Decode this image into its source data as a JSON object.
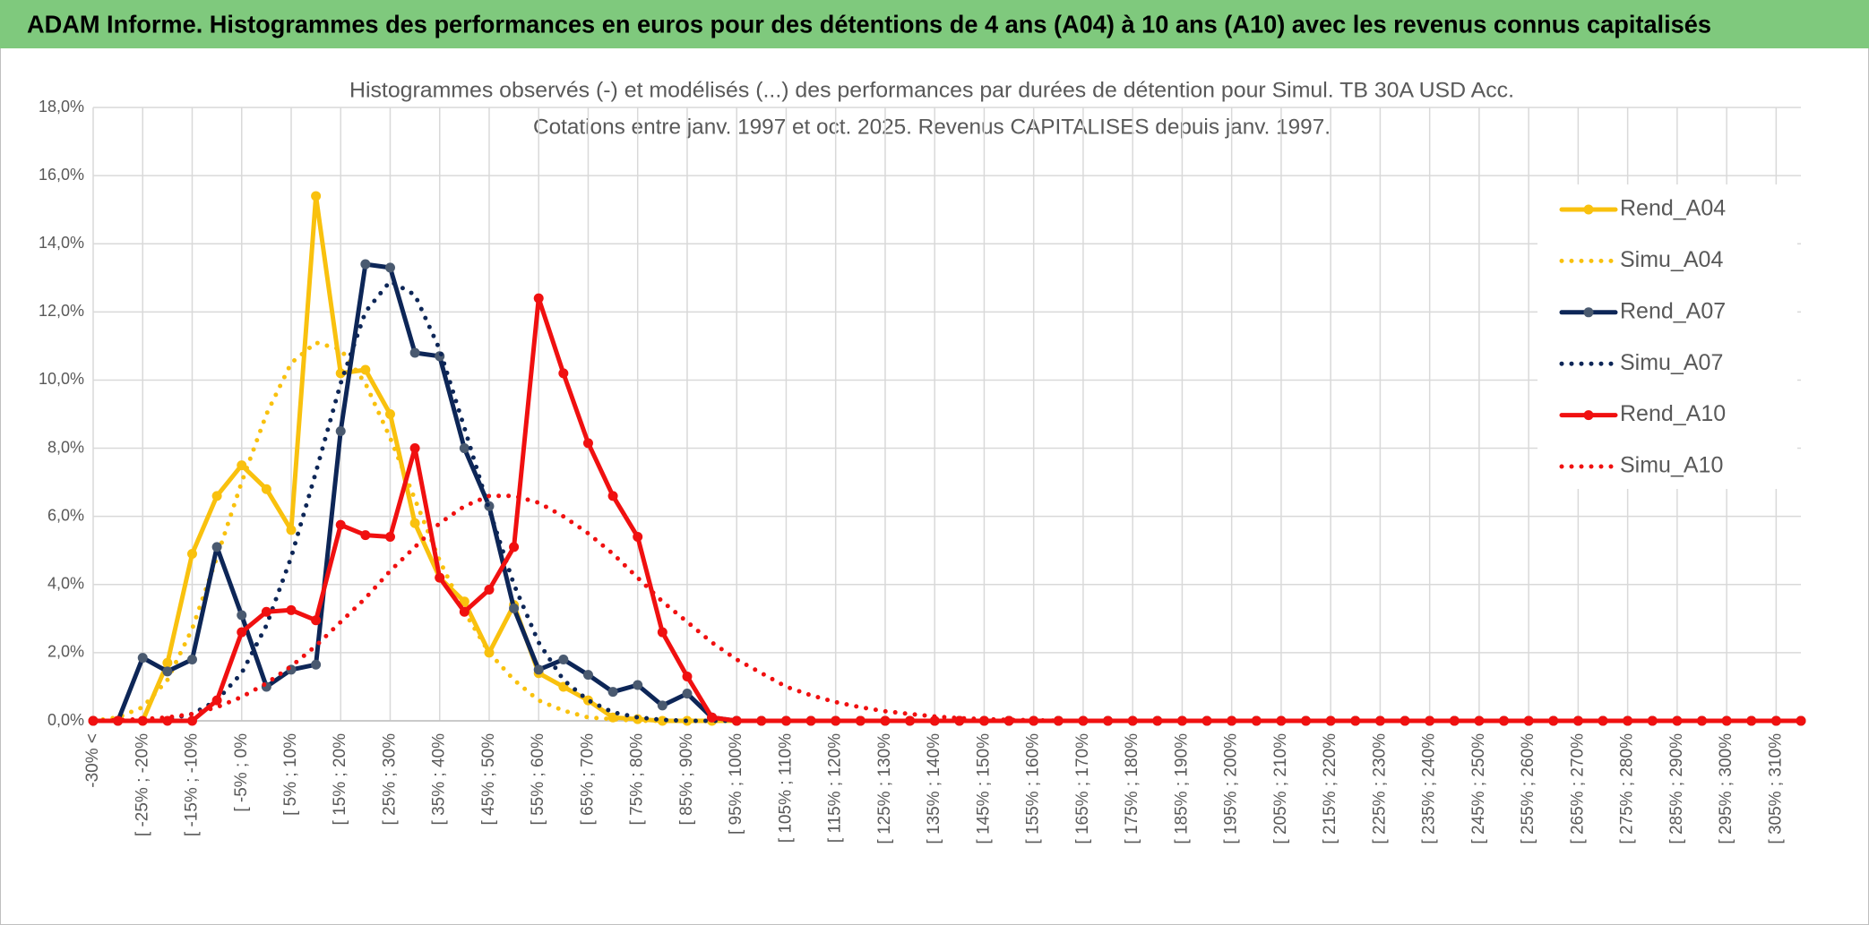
{
  "header": {
    "title": "ADAM Informe. Histogrammes des performances en euros pour des détentions de 4 ans (A04) à 10 ans (A10) avec les revenus connus capitalisés"
  },
  "chart_data": {
    "type": "line",
    "title": "Histogrammes observés (-) et modélisés (...) des performances par durées de détention pour Simul. TB 30A USD Acc.",
    "subtitle": "Cotations entre janv. 1997 et oct. 2025. Revenus CAPITALISES depuis janv. 1997.",
    "categories": [
      "-30% <",
      null,
      "[ -25% ; -20%",
      null,
      "[ -15% ; -10%",
      null,
      "[ -5% ; 0%",
      null,
      "[ 5% ; 10%",
      null,
      "[ 15% ; 20%",
      null,
      "[ 25% ; 30%",
      null,
      "[ 35% ; 40%",
      null,
      "[ 45% ; 50%",
      null,
      "[ 55% ; 60%",
      null,
      "[ 65% ; 70%",
      null,
      "[ 75% ; 80%",
      null,
      "[ 85% ; 90%",
      null,
      "[ 95% ; 100%",
      null,
      "[ 105% ; 110%",
      null,
      "[ 115% ; 120%",
      null,
      "[ 125% ; 130%",
      null,
      "[ 135% ; 140%",
      null,
      "[ 145% ; 150%",
      null,
      "[ 155% ; 160%",
      null,
      "[ 165% ; 170%",
      null,
      "[ 175% ; 180%",
      null,
      "[ 185% ; 190%",
      null,
      "[ 195% ; 200%",
      null,
      "[ 205% ; 210%",
      null,
      "[ 215% ; 220%",
      null,
      "[ 225% ; 230%",
      null,
      "[ 235% ; 240%",
      null,
      "[ 245% ; 250%",
      null,
      "[ 255% ; 260%",
      null,
      "[ 265% ; 270%",
      null,
      "[ 275% ; 280%",
      null,
      "[ 285% ; 290%",
      null,
      "[ 295% ; 300%",
      null,
      "[ 305% ; 310%",
      null
    ],
    "series": [
      {
        "name": "Rend_A04",
        "color": "#f9c10e",
        "style": "solid",
        "values": [
          0,
          0,
          0,
          1.7,
          4.9,
          6.6,
          7.5,
          6.8,
          5.6,
          15.4,
          10.2,
          10.3,
          9.0,
          5.8,
          4.2,
          3.5,
          2.0,
          3.4,
          1.4,
          1.0,
          0.6,
          0.1,
          0.05,
          0,
          0,
          0,
          0,
          0,
          0,
          0,
          0,
          0,
          0,
          0,
          0,
          0,
          0,
          0,
          0,
          0,
          0,
          0,
          0,
          0,
          0,
          0,
          0,
          0,
          0,
          0,
          0,
          0,
          0,
          0,
          0,
          0,
          0,
          0,
          0,
          0,
          0,
          0,
          0,
          0,
          0,
          0,
          0,
          0,
          0,
          0
        ]
      },
      {
        "name": "Simu_A04",
        "color": "#f9c10e",
        "style": "dotted",
        "values": [
          0,
          0.1,
          0.4,
          1.2,
          2.7,
          4.8,
          7.0,
          9.0,
          10.5,
          11.1,
          10.9,
          9.9,
          8.3,
          6.5,
          4.7,
          3.2,
          2.0,
          1.2,
          0.6,
          0.3,
          0.1,
          0.05,
          0,
          0,
          0,
          0,
          0,
          0,
          0,
          0,
          0,
          0,
          0,
          0,
          0,
          0,
          0,
          0,
          0,
          0,
          0,
          0,
          0,
          0,
          0,
          0,
          0,
          0,
          0,
          0,
          0,
          0,
          0,
          0,
          0,
          0,
          0,
          0,
          0,
          0,
          0,
          0,
          0,
          0,
          0,
          0,
          0,
          0,
          0,
          0
        ]
      },
      {
        "name": "Rend_A07",
        "color": "#0d2657",
        "marker": "#4a5a70",
        "style": "solid",
        "values": [
          0,
          0,
          1.85,
          1.45,
          1.8,
          5.1,
          3.1,
          1.0,
          1.5,
          1.65,
          8.5,
          13.4,
          13.3,
          10.8,
          10.7,
          8.0,
          6.3,
          3.3,
          1.5,
          1.8,
          1.35,
          0.85,
          1.05,
          0.45,
          0.8,
          0.1,
          0,
          0,
          0,
          0,
          0,
          0,
          0,
          0,
          0,
          0,
          0,
          0,
          0,
          0,
          0,
          0,
          0,
          0,
          0,
          0,
          0,
          0,
          0,
          0,
          0,
          0,
          0,
          0,
          0,
          0,
          0,
          0,
          0,
          0,
          0,
          0,
          0,
          0,
          0,
          0,
          0,
          0,
          0,
          0
        ]
      },
      {
        "name": "Simu_A07",
        "color": "#0d2657",
        "style": "dotted",
        "values": [
          0,
          0,
          0,
          0.05,
          0.2,
          0.6,
          1.4,
          2.8,
          4.8,
          7.3,
          9.9,
          12.0,
          12.9,
          12.5,
          10.9,
          8.6,
          6.2,
          4.0,
          2.3,
          1.2,
          0.6,
          0.25,
          0.1,
          0.03,
          0,
          0,
          0,
          0,
          0,
          0,
          0,
          0,
          0,
          0,
          0,
          0,
          0,
          0,
          0,
          0,
          0,
          0,
          0,
          0,
          0,
          0,
          0,
          0,
          0,
          0,
          0,
          0,
          0,
          0,
          0,
          0,
          0,
          0,
          0,
          0,
          0,
          0,
          0,
          0,
          0,
          0,
          0,
          0,
          0,
          0
        ]
      },
      {
        "name": "Rend_A10",
        "color": "#f01010",
        "style": "solid",
        "values": [
          0,
          0,
          0,
          0,
          0,
          0.6,
          2.6,
          3.2,
          3.25,
          2.95,
          5.75,
          5.45,
          5.4,
          8.0,
          4.2,
          3.2,
          3.85,
          5.1,
          12.4,
          10.2,
          8.15,
          6.6,
          5.4,
          2.6,
          1.3,
          0.1,
          0,
          0,
          0,
          0,
          0,
          0,
          0,
          0,
          0,
          0,
          0,
          0,
          0,
          0,
          0,
          0,
          0,
          0,
          0,
          0,
          0,
          0,
          0,
          0,
          0,
          0,
          0,
          0,
          0,
          0,
          0,
          0,
          0,
          0,
          0,
          0,
          0,
          0,
          0,
          0,
          0,
          0,
          0,
          0
        ]
      },
      {
        "name": "Simu_A10",
        "color": "#f01010",
        "style": "dotted",
        "values": [
          0,
          0.02,
          0.05,
          0.1,
          0.2,
          0.4,
          0.7,
          1.1,
          1.6,
          2.2,
          2.9,
          3.6,
          4.4,
          5.1,
          5.8,
          6.3,
          6.6,
          6.6,
          6.4,
          6.0,
          5.5,
          4.9,
          4.2,
          3.5,
          2.9,
          2.3,
          1.8,
          1.4,
          1.0,
          0.75,
          0.55,
          0.4,
          0.28,
          0.2,
          0.13,
          0.08,
          0.05,
          0.03,
          0.02,
          0,
          0,
          0,
          0,
          0,
          0,
          0,
          0,
          0,
          0,
          0,
          0,
          0,
          0,
          0,
          0,
          0,
          0,
          0,
          0,
          0,
          0,
          0,
          0,
          0,
          0,
          0,
          0,
          0,
          0,
          0
        ]
      }
    ],
    "ylim": [
      0,
      18
    ],
    "yticks": [
      {
        "value": 0,
        "label": "0,0%"
      },
      {
        "value": 2,
        "label": "2,0%"
      },
      {
        "value": 4,
        "label": "4,0%"
      },
      {
        "value": 6,
        "label": "6,0%"
      },
      {
        "value": 8,
        "label": "8,0%"
      },
      {
        "value": 10,
        "label": "10,0%"
      },
      {
        "value": 12,
        "label": "12,0%"
      },
      {
        "value": 14,
        "label": "14,0%"
      },
      {
        "value": 16,
        "label": "16,0%"
      },
      {
        "value": 18,
        "label": "18,0%"
      }
    ],
    "grid": true,
    "legend": "right"
  }
}
